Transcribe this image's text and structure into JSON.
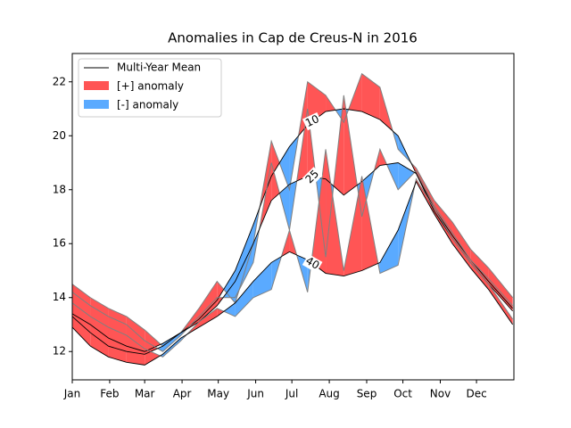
{
  "chart_data": {
    "type": "anomaly",
    "title": "Anomalies in Cap de Creus-N in 2016",
    "x": [
      0,
      15,
      30,
      45,
      60,
      75,
      90,
      105,
      120,
      135,
      150,
      165,
      180,
      195,
      210,
      225,
      240,
      255,
      270,
      285,
      300,
      315,
      330,
      345,
      365
    ],
    "xlim": [
      0,
      366
    ],
    "xticks": [
      {
        "value": 0,
        "label": "Jan"
      },
      {
        "value": 31,
        "label": "Feb"
      },
      {
        "value": 60,
        "label": "Mar"
      },
      {
        "value": 91,
        "label": "Apr"
      },
      {
        "value": 121,
        "label": "May"
      },
      {
        "value": 152,
        "label": "Jun"
      },
      {
        "value": 182,
        "label": "Jul"
      },
      {
        "value": 213,
        "label": "Aug"
      },
      {
        "value": 244,
        "label": "Sep"
      },
      {
        "value": 274,
        "label": "Oct"
      },
      {
        "value": 305,
        "label": "Nov"
      },
      {
        "value": 335,
        "label": "Dec"
      }
    ],
    "ylim": [
      10.95,
      23.05
    ],
    "yticks": [
      12,
      14,
      16,
      18,
      20,
      22
    ],
    "legend": {
      "position": "upper left",
      "mean_label": "Multi-Year Mean",
      "pos_label": "[+] anomaly",
      "neg_label": "[-] anomaly"
    },
    "mean_color": "#000000",
    "pos_color": "#ff5555",
    "neg_color": "#5aaaff",
    "obs_color": "#808080",
    "series": [
      {
        "name": "10",
        "mean": [
          13.4,
          13.0,
          12.5,
          12.2,
          12.0,
          12.3,
          12.7,
          13.2,
          13.9,
          15.0,
          16.7,
          18.5,
          19.6,
          20.4,
          20.9,
          21.0,
          20.9,
          20.6,
          20.0,
          18.6,
          17.3,
          16.3,
          15.4,
          14.6,
          13.6
        ],
        "values": [
          14.5,
          14.0,
          13.6,
          13.3,
          12.8,
          12.2,
          12.7,
          13.6,
          14.6,
          13.8,
          16.0,
          19.8,
          18.0,
          22.0,
          21.5,
          20.5,
          22.3,
          21.8,
          19.5,
          18.8,
          17.6,
          16.8,
          15.8,
          15.1,
          14.0
        ]
      },
      {
        "name": "25",
        "mean": [
          13.3,
          12.7,
          12.2,
          12.0,
          11.9,
          12.2,
          12.7,
          13.1,
          13.7,
          14.6,
          16.0,
          17.6,
          18.2,
          18.5,
          18.4,
          17.8,
          18.3,
          18.9,
          19.0,
          18.6,
          17.2,
          16.2,
          15.3,
          14.5,
          13.5
        ],
        "values": [
          14.2,
          13.7,
          13.3,
          13.0,
          12.4,
          12.0,
          12.6,
          13.3,
          14.0,
          14.0,
          15.3,
          19.0,
          16.5,
          21.0,
          15.5,
          21.5,
          17.0,
          19.5,
          18.0,
          18.7,
          17.4,
          16.4,
          15.4,
          14.7,
          13.7
        ]
      },
      {
        "name": "40",
        "mean": [
          12.9,
          12.2,
          11.8,
          11.6,
          11.5,
          11.9,
          12.5,
          12.9,
          13.3,
          13.8,
          14.6,
          15.3,
          15.7,
          15.4,
          14.9,
          14.8,
          15.0,
          15.3,
          16.5,
          18.3,
          17.1,
          16.0,
          15.1,
          14.3,
          13.0
        ],
        "values": [
          13.8,
          13.3,
          12.9,
          12.6,
          12.1,
          11.8,
          12.4,
          13.1,
          13.6,
          13.3,
          14.0,
          14.3,
          16.5,
          14.2,
          19.5,
          15.0,
          18.5,
          14.9,
          15.2,
          18.4,
          17.3,
          16.2,
          15.3,
          14.5,
          13.2
        ]
      }
    ]
  }
}
